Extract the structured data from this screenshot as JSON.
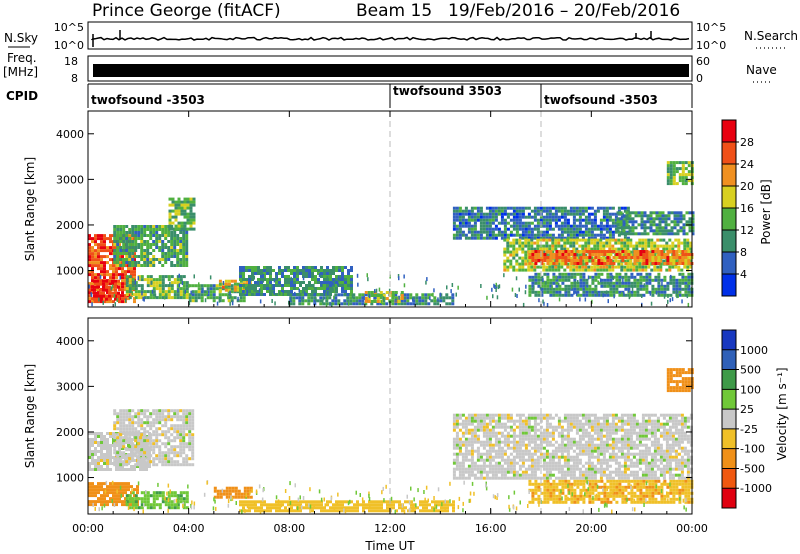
{
  "header": {
    "station": "Prince George (fitACF)",
    "beam": "Beam 15",
    "dates": "19/Feb/2016 – 20/Feb/2016"
  },
  "top_panels": {
    "nsky_label": "N.Sky",
    "nsky_ticks": [
      "10^5",
      "10^0"
    ],
    "nsearch_label": "N.Search",
    "nsearch_ticks": [
      "10^5",
      "10^0"
    ],
    "freq_label_1": "Freq.",
    "freq_label_2": "[MHz]",
    "freq_ticks": [
      "18",
      "8"
    ],
    "nave_label": "Nave",
    "nave_ticks": [
      "60",
      "0"
    ],
    "cpid_label": "CPID",
    "cpid_segments": [
      {
        "label": "twofsound -3503",
        "start_hour": 0.0
      },
      {
        "label": "twofsound 3503",
        "start_hour": 12.0
      },
      {
        "label": "twofsound -3503",
        "start_hour": 18.0
      }
    ]
  },
  "chart_data": [
    {
      "type": "heatmap",
      "title": "",
      "ylabel": "Slant Range [km]",
      "ylim": [
        200,
        4500
      ],
      "xlim": [
        0,
        24
      ],
      "yticks": [
        "1000",
        "2000",
        "3000",
        "4000"
      ],
      "ytick_values": [
        1000,
        2000,
        3000,
        4000
      ],
      "colorbar_label": "Power [dB]",
      "colorbar_ticks": [
        "4",
        "8",
        "12",
        "16",
        "20",
        "24",
        "28"
      ],
      "colorbar_colors": [
        "#0030e8",
        "#3060c0",
        "#3a8e6a",
        "#50b040",
        "#d8d020",
        "#f09020",
        "#f05018",
        "#e80010"
      ],
      "markers_hours": [
        12,
        18
      ],
      "regions": [
        {
          "x0": 0.0,
          "x1": 1.8,
          "y0": 300,
          "y1": 1800,
          "level": 26
        },
        {
          "x0": 0.2,
          "x1": 1.2,
          "y0": 400,
          "y1": 800,
          "level": 30
        },
        {
          "x0": 1.0,
          "x1": 3.9,
          "y0": 1100,
          "y1": 2000,
          "level": 12
        },
        {
          "x0": 3.2,
          "x1": 4.2,
          "y0": 1900,
          "y1": 2600,
          "level": 14
        },
        {
          "x0": 1.5,
          "x1": 4.0,
          "y0": 400,
          "y1": 900,
          "level": 14
        },
        {
          "x0": 4.0,
          "x1": 6.2,
          "y0": 350,
          "y1": 700,
          "level": 12
        },
        {
          "x0": 5.2,
          "x1": 6.5,
          "y0": 600,
          "y1": 800,
          "level": 20
        },
        {
          "x0": 6.0,
          "x1": 10.5,
          "y0": 500,
          "y1": 1100,
          "level": 10
        },
        {
          "x0": 8.0,
          "x1": 14.5,
          "y0": 250,
          "y1": 500,
          "level": 10
        },
        {
          "x0": 11.0,
          "x1": 12.5,
          "y0": 350,
          "y1": 550,
          "level": 18
        },
        {
          "x0": 14.5,
          "x1": 21.5,
          "y0": 1700,
          "y1": 2400,
          "level": 8
        },
        {
          "x0": 16.5,
          "x1": 24.0,
          "y0": 1000,
          "y1": 1700,
          "level": 16
        },
        {
          "x0": 17.5,
          "x1": 24.0,
          "y0": 1150,
          "y1": 1450,
          "level": 24
        },
        {
          "x0": 17.5,
          "x1": 24.0,
          "y0": 450,
          "y1": 950,
          "level": 10
        },
        {
          "x0": 21.0,
          "x1": 24.0,
          "y0": 1800,
          "y1": 2300,
          "level": 10
        },
        {
          "x0": 23.0,
          "x1": 24.0,
          "y0": 2900,
          "y1": 3400,
          "level": 14
        }
      ]
    },
    {
      "type": "heatmap",
      "title": "",
      "xlabel": "Time UT",
      "ylabel": "Slant Range [km]",
      "ylim": [
        200,
        4500
      ],
      "xlim": [
        0,
        24
      ],
      "xticks": [
        "00:00",
        "04:00",
        "08:00",
        "12:00",
        "16:00",
        "20:00",
        "00:00"
      ],
      "xtick_hours": [
        0,
        4,
        8,
        12,
        16,
        20,
        24
      ],
      "yticks": [
        "1000",
        "2000",
        "3000",
        "4000"
      ],
      "ytick_values": [
        1000,
        2000,
        3000,
        4000
      ],
      "colorbar_label": "Velocity [m s⁻¹]",
      "colorbar_ticks": [
        "1000",
        "500",
        "100",
        "25",
        "-25",
        "-100",
        "-500",
        "-1000"
      ],
      "colorbar_colors": [
        "#1838c0",
        "#2f60b8",
        "#3e9a48",
        "#70c838",
        "#c8c8c8",
        "#f0c028",
        "#f09018",
        "#f05810",
        "#e00010"
      ],
      "markers_hours": [
        12,
        18
      ],
      "regions": [
        {
          "x0": 0.0,
          "x1": 2.5,
          "y0": 1200,
          "y1": 2000,
          "level": 0
        },
        {
          "x0": 1.0,
          "x1": 4.2,
          "y0": 1300,
          "y1": 2500,
          "level": 0
        },
        {
          "x0": 0.0,
          "x1": 2.0,
          "y0": 400,
          "y1": 900,
          "level": -150
        },
        {
          "x0": 1.5,
          "x1": 4.0,
          "y0": 350,
          "y1": 700,
          "level": 80
        },
        {
          "x0": 5.0,
          "x1": 6.5,
          "y0": 600,
          "y1": 800,
          "level": -150
        },
        {
          "x0": 6.0,
          "x1": 14.5,
          "y0": 250,
          "y1": 500,
          "level": -60
        },
        {
          "x0": 14.5,
          "x1": 24.0,
          "y0": 1000,
          "y1": 2400,
          "level": 0
        },
        {
          "x0": 17.5,
          "x1": 24.0,
          "y0": 450,
          "y1": 950,
          "level": -80
        },
        {
          "x0": 23.0,
          "x1": 24.0,
          "y0": 2900,
          "y1": 3400,
          "level": -300
        }
      ]
    }
  ]
}
